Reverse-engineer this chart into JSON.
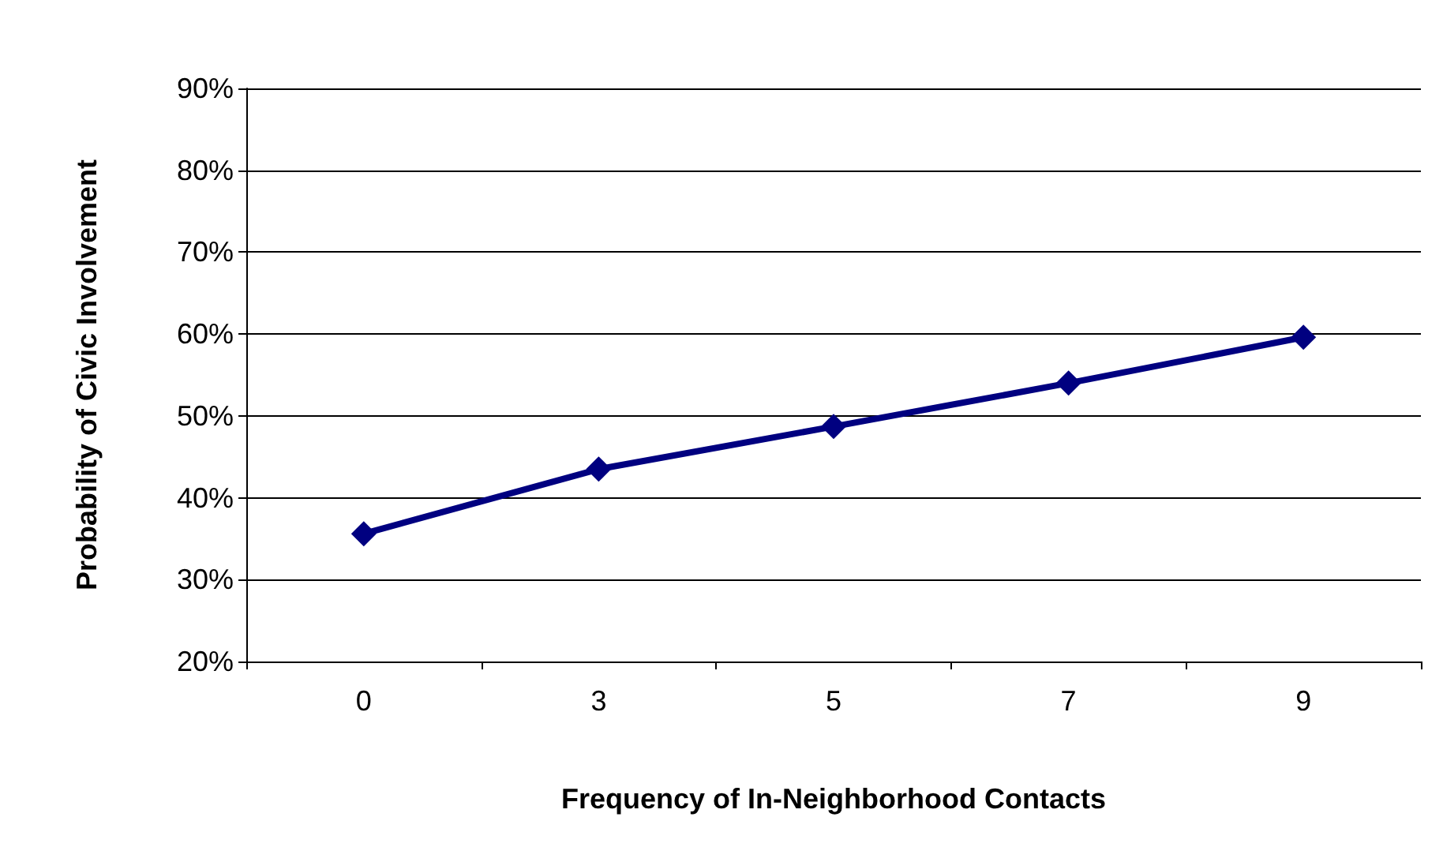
{
  "chart_data": {
    "type": "line",
    "xlabel": "Frequency of In-Neighborhood Contacts",
    "ylabel": "Probability of Civic Involvement",
    "categories": [
      "0",
      "3",
      "5",
      "7",
      "9"
    ],
    "series": [
      {
        "color": "#000080",
        "values": [
          35.6,
          43.5,
          48.7,
          54.0,
          59.6
        ]
      }
    ],
    "ylim": [
      20,
      90
    ],
    "yticks": [
      {
        "value": 20,
        "label": "20%"
      },
      {
        "value": 30,
        "label": "30%"
      },
      {
        "value": 40,
        "label": "40%"
      },
      {
        "value": 50,
        "label": "50%"
      },
      {
        "value": 60,
        "label": "60%"
      },
      {
        "value": 70,
        "label": "70%"
      },
      {
        "value": 80,
        "label": "80%"
      },
      {
        "value": 90,
        "label": "90%"
      }
    ],
    "grid": "y",
    "marker": "diamond",
    "line_style": "solid"
  }
}
